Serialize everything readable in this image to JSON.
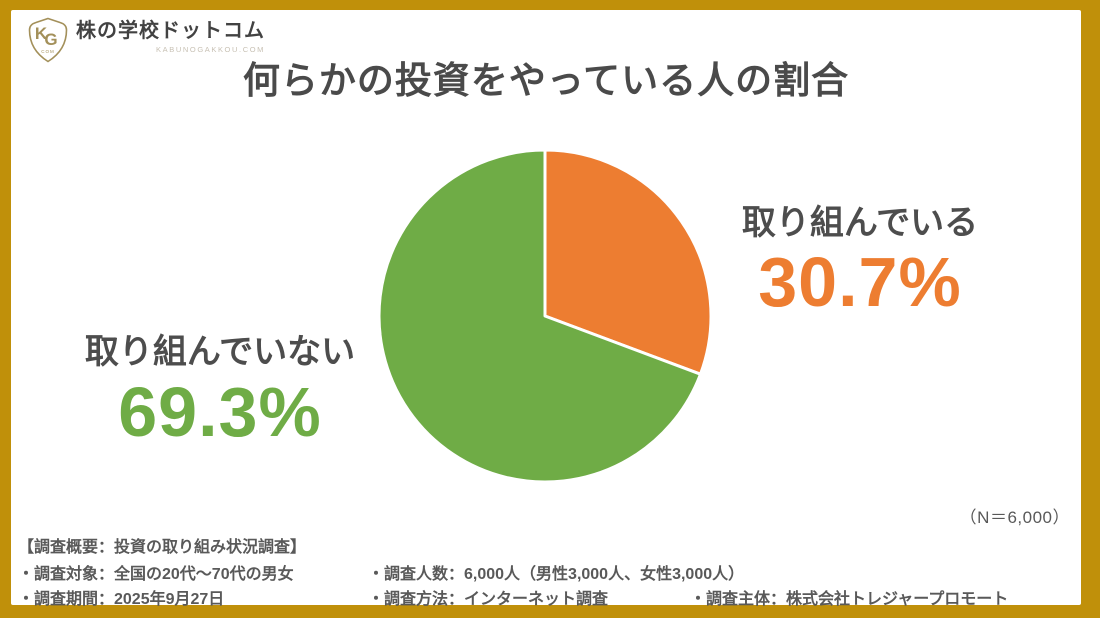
{
  "brand": {
    "name": "株の学校ドットコム",
    "domain": "KABUNOGAKKOU.COM",
    "monogram_k": "K",
    "monogram_g": "G",
    "monogram_sub": "COM"
  },
  "title": "何らかの投資をやっている人の割合",
  "chart_data": {
    "type": "pie",
    "title": "何らかの投資をやっている人の割合",
    "start_angle_deg": 0,
    "direction": "clockwise",
    "legend_position": "callout-labels",
    "slices": [
      {
        "label": "取り組んでいる",
        "value": 30.7,
        "display": "30.7%",
        "color": "#ED7D31"
      },
      {
        "label": "取り組んでいない",
        "value": 69.3,
        "display": "69.3%",
        "color": "#6FAC46"
      }
    ],
    "sample_label": "（N＝6,000）"
  },
  "survey": {
    "heading": "【調査概要：投資の取り組み状況調査】",
    "target": "・調査対象：全国の20代～70代の男女",
    "count": "・調査人数：6,000人（男性3,000人、女性3,000人）",
    "period": "・調査期間：2025年9月27日",
    "method": "・調査方法：インターネット調査",
    "organizer": "・調査主体：株式会社トレジャープロモート"
  },
  "colors": {
    "frame_gold": "#C0900A",
    "engaged_orange": "#ED7D31",
    "not_engaged_green": "#6FAC46",
    "title_gray": "#4a4a4a",
    "body_gray": "#595959",
    "logo_gold": "#A3905A"
  }
}
